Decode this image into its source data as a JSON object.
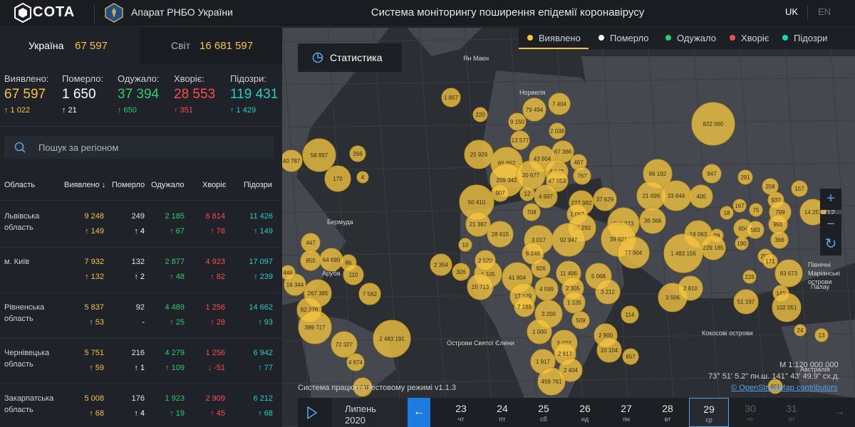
{
  "header": {
    "logo": "COTA",
    "org": "Апарат РНБО України",
    "title": "Система моніторингу поширення епідемії коронавірусу",
    "lang_uk": "UK",
    "lang_en": "EN"
  },
  "tabs": {
    "ukraine_label": "Україна",
    "ukraine_value": "67 597",
    "world_label": "Світ",
    "world_value": "16 681 597"
  },
  "summary": [
    {
      "label": "Виявлено:",
      "value": "67 597",
      "delta": "1 022",
      "color": "#f5c542",
      "arrow": "up"
    },
    {
      "label": "Померло:",
      "value": "1 650",
      "delta": "21",
      "color": "#ffffff",
      "arrow": "up"
    },
    {
      "label": "Одужало:",
      "value": "37 394",
      "delta": "650",
      "color": "#2ecc71",
      "arrow": "up"
    },
    {
      "label": "Хворіє:",
      "value": "28 553",
      "delta": "351",
      "color": "#ff4d4d",
      "arrow": "up"
    },
    {
      "label": "Підозри:",
      "value": "119 431",
      "delta": "1 429",
      "color": "#1fd1c1",
      "arrow": "up"
    }
  ],
  "search": {
    "placeholder": "Пошук за регіоном"
  },
  "table": {
    "headers": [
      "Область",
      "Виявлено ↓",
      "Померло",
      "Одужало",
      "Хворіє",
      "Підозри"
    ],
    "rows": [
      {
        "name": "Львівська область",
        "detected": "9 248",
        "detected_d": "149",
        "died": "249",
        "died_d": "4",
        "recovered": "2 185",
        "recovered_d": "67",
        "sick": "6 814",
        "sick_d": "78",
        "suspected": "11 426",
        "suspected_d": "149",
        "sick_dir": "up"
      },
      {
        "name": "м. Київ",
        "detected": "7 932",
        "detected_d": "132",
        "died": "132",
        "died_d": "2",
        "recovered": "2 877",
        "recovered_d": "48",
        "sick": "4 923",
        "sick_d": "82",
        "suspected": "17 097",
        "suspected_d": "239",
        "sick_dir": "up"
      },
      {
        "name": "Рівненська область",
        "detected": "5 837",
        "detected_d": "53",
        "died": "92",
        "died_d": "-",
        "recovered": "4 489",
        "recovered_d": "25",
        "sick": "1 256",
        "sick_d": "28",
        "suspected": "14 662",
        "suspected_d": "93",
        "sick_dir": "up"
      },
      {
        "name": "Чернівецька область",
        "detected": "5 751",
        "detected_d": "59",
        "died": "216",
        "died_d": "1",
        "recovered": "4 279",
        "recovered_d": "109",
        "sick": "1 256",
        "sick_d": "-51",
        "suspected": "6 942",
        "suspected_d": "77",
        "sick_dir": "down"
      },
      {
        "name": "Закарпатська область",
        "detected": "5 008",
        "detected_d": "68",
        "died": "176",
        "died_d": "4",
        "recovered": "1 923",
        "recovered_d": "19",
        "sick": "2 909",
        "sick_d": "45",
        "suspected": "6 212",
        "suspected_d": "68",
        "sick_dir": "up"
      }
    ]
  },
  "map": {
    "stat_button": "Статистика",
    "legend": [
      {
        "label": "Виявлено",
        "color": "#f5c542"
      },
      {
        "label": "Померло",
        "color": "#ffffff"
      },
      {
        "label": "Одужало",
        "color": "#2ecc71"
      },
      {
        "label": "Хворіє",
        "color": "#ff4d4d"
      },
      {
        "label": "Підозри",
        "color": "#1fd1c1"
      }
    ],
    "zoom_in": "+",
    "zoom_out": "−",
    "refresh": "↻",
    "zoom_level": "712",
    "version": "Система працює в тестовому режимі v1.1.3",
    "scale": "М 1:120 000 000",
    "coords": "73° 51' 5.2\" пн.ш. 141° 43' 49.9\" сх.д.",
    "osm": "© OpenStreetMap contributors",
    "labels": [
      "Ян Маєн",
      "Норвегія",
      "Бермуда",
      "Аруба",
      "Острови Святої Єлени",
      "Кокосові острови",
      "Австралія",
      "Північні Маріанські острови",
      "Палау"
    ],
    "bubbles": [
      "1 857",
      "220",
      "79 494",
      "7 404",
      "9 150",
      "2 038",
      "822 060",
      "13 577",
      "67 366",
      "25 929",
      "66 662",
      "43 904",
      "467",
      "4 342",
      "209 342",
      "20 677",
      "47 053",
      "767",
      "86 192",
      "947",
      "291",
      "258",
      "157",
      "907",
      "12",
      "4 997",
      "21 699",
      "33 844",
      "400",
      "932",
      "75",
      "167",
      "18",
      "799",
      "14 251",
      "50 410",
      "708",
      "227 982",
      "37 629",
      "991",
      "604",
      "583",
      "1 067",
      "21 387",
      "28 615",
      "66 293",
      "296 273",
      "36 368",
      "19 063",
      "99",
      "229 185",
      "190",
      "366",
      "3 017",
      "92 947",
      "39 921",
      "77 904",
      "1 483 156",
      "255",
      "171",
      "6 249",
      "226",
      "83 673",
      "326",
      "1 105",
      "41 804",
      "926",
      "11 496",
      "5 068",
      "15 713",
      "4 599",
      "2 305",
      "3 212",
      "17 179",
      "7 189",
      "1 135",
      "3 506",
      "2 810",
      "141",
      "51 197",
      "102 051",
      "3 200",
      "509",
      "114",
      "1 000",
      "2 900",
      "5 002",
      "10 104",
      "2 817",
      "657",
      "24",
      "13",
      "1 917",
      "2 404",
      "459 761",
      "40 787",
      "58 897",
      "266",
      "170",
      "4",
      "447",
      "855",
      "64 690",
      "86",
      "16 344",
      "110",
      "267 385",
      "7 562",
      "82 279",
      "389 717",
      "72 327",
      "2 483 191",
      "4 674",
      "1 218",
      "10",
      "2 354",
      "2 520",
      "446",
      "661"
    ]
  },
  "timeline": {
    "month": "Липень",
    "year": "2020",
    "back": "←",
    "next": "→",
    "days": [
      {
        "n": "23",
        "w": "чт",
        "state": "normal"
      },
      {
        "n": "24",
        "w": "пт",
        "state": "normal"
      },
      {
        "n": "25",
        "w": "сб",
        "state": "normal"
      },
      {
        "n": "26",
        "w": "нд",
        "state": "normal"
      },
      {
        "n": "27",
        "w": "пн",
        "state": "normal"
      },
      {
        "n": "28",
        "w": "вт",
        "state": "normal"
      },
      {
        "n": "29",
        "w": "ср",
        "state": "selected"
      },
      {
        "n": "30",
        "w": "чт",
        "state": "disabled"
      },
      {
        "n": "31",
        "w": "пт",
        "state": "disabled"
      }
    ]
  }
}
